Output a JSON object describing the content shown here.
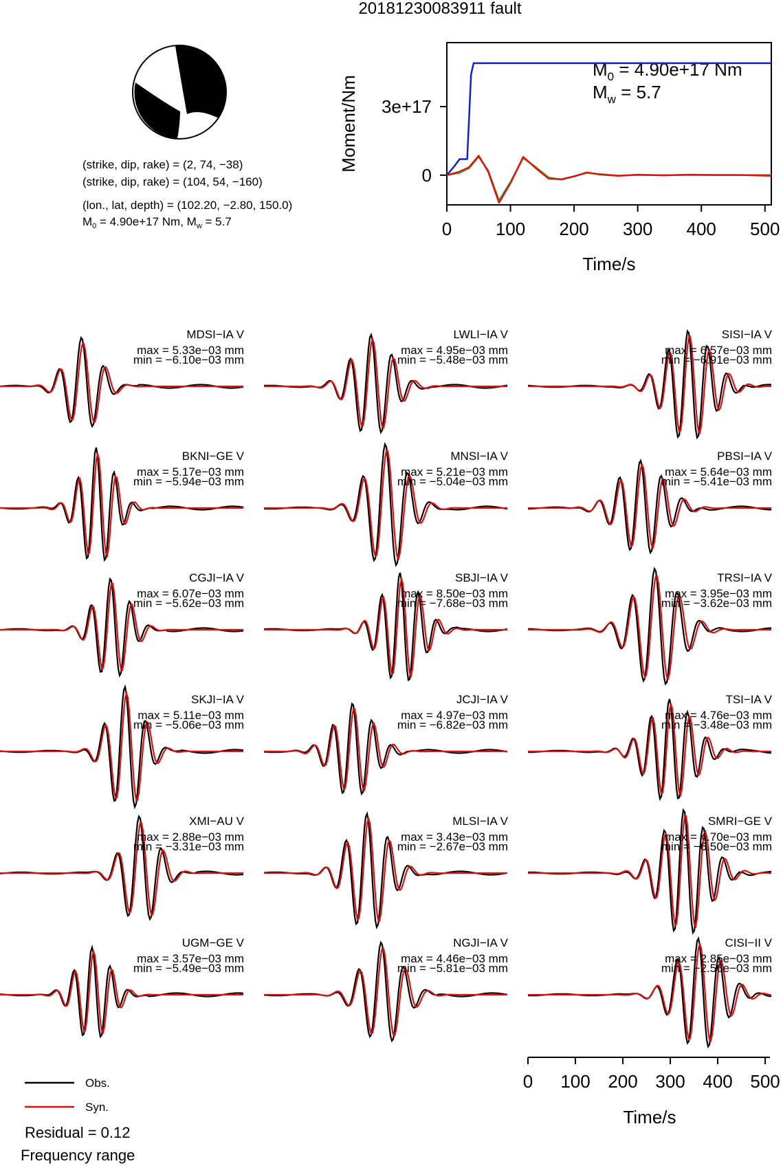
{
  "figure": {
    "title": "20181230083911 fault",
    "mechanism": {
      "plane1": "(strike, dip, rake) = (2, 74, −38)",
      "plane2": "(strike, dip, rake) = (104, 54, −160)",
      "location": "(lon., lat, depth) = (102.20, −2.80, 150.0)",
      "moment_prefix": "M",
      "moment_sub": "0",
      "moment_value": " = 4.90e+17 Nm, M",
      "mw_sub": "w",
      "mw_value": " = 5.7"
    },
    "legend": {
      "obs": "Obs.",
      "syn": "Syn."
    },
    "residual": "Residual = 0.12",
    "frequency_label": "Frequency range",
    "colors": {
      "obs": "#000000",
      "syn": "#e01010",
      "moment": "#1020d0",
      "stf": "#30c030"
    }
  },
  "chart_data": [
    {
      "type": "line",
      "title": "",
      "xlabel": "Time/s",
      "ylabel": "Moment/Nm",
      "xlim": [
        0,
        510
      ],
      "ylim": [
        -1.3e+17,
        5.8e+17
      ],
      "xticks": [
        "0",
        "100",
        "200",
        "300",
        "400",
        "500"
      ],
      "yticks": [
        {
          "value": 0,
          "label": "0"
        },
        {
          "value": 3e+17,
          "label": "3e+17"
        }
      ],
      "annotation": {
        "m0_prefix": "M",
        "m0_sub": "0",
        "m0_value": " = 4.90e+17 Nm",
        "mw_prefix": "M",
        "mw_sub": "w",
        "mw_value": " = 5.7"
      },
      "series": [
        {
          "color": "#1020d0",
          "x": [
            0,
            12,
            20,
            32,
            38,
            42,
            510
          ],
          "y": [
            0,
            4e+16,
            7e+16,
            7e+16,
            4.4e+17,
            4.9e+17,
            4.9e+17
          ]
        },
        {
          "color": "#30c030",
          "x": [
            0,
            20,
            35,
            50,
            65,
            82,
            100,
            120,
            140,
            160,
            180,
            200,
            220,
            240,
            270,
            300,
            340,
            380,
            420,
            460,
            510
          ],
          "y": [
            0,
            1e+16,
            3e+16,
            8e+16,
            2e+16,
            -1.1e+17,
            -3e+16,
            7.5e+16,
            3.5e+16,
            -1e+16,
            -2e+16,
            -5000000000000000.0,
            1e+16,
            5000000000000000.0,
            -2000000000000000.0,
            1000000000000000.0,
            0,
            1000000000000000.0,
            0,
            0,
            1000000000000000.0
          ]
        },
        {
          "color": "#e01010",
          "x": [
            0,
            20,
            35,
            50,
            65,
            82,
            100,
            120,
            140,
            160,
            180,
            200,
            220,
            240,
            270,
            300,
            340,
            380,
            420,
            460,
            510
          ],
          "y": [
            0,
            1.5e+16,
            3.5e+16,
            8.5e+16,
            1.5e+16,
            -1.2e+17,
            -3.5e+16,
            8e+16,
            3e+16,
            -1.5e+16,
            -1.8e+16,
            -5000000000000000.0,
            1.2e+16,
            3000000000000000.0,
            -3000000000000000.0,
            2000000000000000.0,
            -1000000000000000.0,
            2000000000000000.0,
            1000000000000000.0,
            1000000000000000.0,
            -3000000000000000.0
          ]
        }
      ]
    },
    {
      "type": "line",
      "title": "",
      "description_axis": "shared time axis for waveform panels",
      "xlabel": "Time/s",
      "xlim": [
        0,
        510
      ],
      "xticks": [
        "0",
        "100",
        "200",
        "300",
        "400",
        "500"
      ],
      "stations": [
        {
          "name": "MDSI−IA V",
          "max": "max = 5.33e−03 mm",
          "min": "min = −6.10e−03 mm"
        },
        {
          "name": "LWLI−IA V",
          "max": "max = 4.95e−03 mm",
          "min": "min = −5.48e−03 mm"
        },
        {
          "name": "SISI−IA V",
          "max": "max = 6.57e−03 mm",
          "min": "min = −6.91e−03 mm"
        },
        {
          "name": "BKNI−GE V",
          "max": "max = 5.17e−03 mm",
          "min": "min = −5.94e−03 mm"
        },
        {
          "name": "MNSI−IA V",
          "max": "max = 5.21e−03 mm",
          "min": "min = −5.04e−03 mm"
        },
        {
          "name": "PBSI−IA V",
          "max": "max = 5.64e−03 mm",
          "min": "min = −5.41e−03 mm"
        },
        {
          "name": "CGJI−IA V",
          "max": "max = 6.07e−03 mm",
          "min": "min = −5.62e−03 mm"
        },
        {
          "name": "SBJI−IA V",
          "max": "max = 8.50e−03 mm",
          "min": "min = −7.68e−03 mm"
        },
        {
          "name": "TRSI−IA V",
          "max": "max = 3.95e−03 mm",
          "min": "min = −3.62e−03 mm"
        },
        {
          "name": "SKJI−IA V",
          "max": "max = 5.11e−03 mm",
          "min": "min = −5.06e−03 mm"
        },
        {
          "name": "JCJI−IA V",
          "max": "max = 4.97e−03 mm",
          "min": "min = −6.82e−03 mm"
        },
        {
          "name": "TSI−IA V",
          "max": "max = 4.76e−03 mm",
          "min": "min = −3.48e−03 mm"
        },
        {
          "name": "XMI−AU V",
          "max": "max = 2.88e−03 mm",
          "min": "min = −3.31e−03 mm"
        },
        {
          "name": "MLSI−IA V",
          "max": "max = 3.43e−03 mm",
          "min": "min = −2.67e−03 mm"
        },
        {
          "name": "SMRI−GE V",
          "max": "max = 4.70e−03 mm",
          "min": "min = −6.50e−03 mm"
        },
        {
          "name": "UGM−GE V",
          "max": "max = 3.57e−03 mm",
          "min": "min = −5.49e−03 mm"
        },
        {
          "name": "NGJI−IA V",
          "max": "max = 4.46e−03 mm",
          "min": "min = −5.81e−03 mm"
        },
        {
          "name": "CISI−II V",
          "max": "max = 2.85e−03 mm",
          "min": "min = −2.56e−03 mm"
        }
      ]
    }
  ]
}
